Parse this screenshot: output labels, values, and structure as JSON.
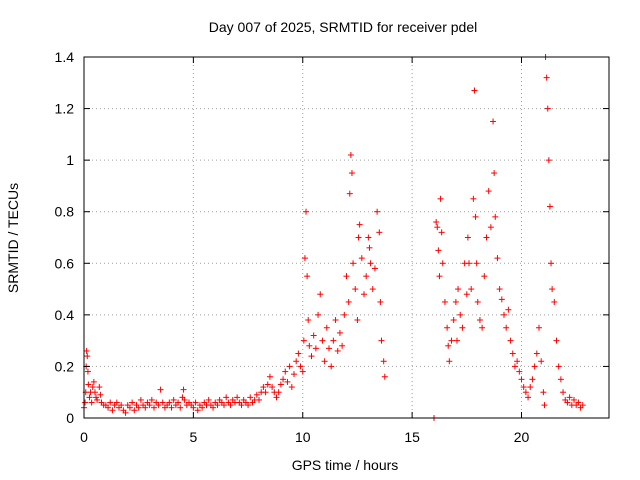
{
  "chart_data": {
    "type": "scatter",
    "title": "Day 007 of 2025, SRMTID for receiver pdel",
    "xlabel": "GPS time / hours",
    "ylabel": "SRMTID / TECUs",
    "xlim": [
      0,
      24
    ],
    "ylim": [
      0,
      1.4
    ],
    "x_ticks": [
      0,
      5,
      10,
      15,
      20
    ],
    "x_tick_labels": [
      "0",
      "5",
      "10",
      "15",
      "20"
    ],
    "y_ticks": [
      0,
      0.2,
      0.4,
      0.6,
      0.8,
      1.0,
      1.2,
      1.4
    ],
    "y_tick_labels": [
      "0",
      "0.2",
      "0.4",
      "0.6",
      "0.8",
      "1",
      "1.2",
      "1.4"
    ],
    "grid": true,
    "marker": "+",
    "color": "#ff0000",
    "series": [
      {
        "name": "SRMTID",
        "points": [
          [
            0.0,
            0.04
          ],
          [
            0.05,
            0.06
          ],
          [
            0.08,
            0.1
          ],
          [
            0.1,
            0.2
          ],
          [
            0.12,
            0.26
          ],
          [
            0.15,
            0.24
          ],
          [
            0.18,
            0.18
          ],
          [
            0.2,
            0.13
          ],
          [
            0.25,
            0.08
          ],
          [
            0.3,
            0.1
          ],
          [
            0.35,
            0.06
          ],
          [
            0.4,
            0.12
          ],
          [
            0.45,
            0.14
          ],
          [
            0.5,
            0.1
          ],
          [
            0.55,
            0.08
          ],
          [
            0.6,
            0.07
          ],
          [
            0.7,
            0.12
          ],
          [
            0.75,
            0.09
          ],
          [
            0.8,
            0.06
          ],
          [
            0.9,
            0.05
          ],
          [
            1.0,
            0.05
          ],
          [
            1.1,
            0.04
          ],
          [
            1.2,
            0.06
          ],
          [
            1.3,
            0.03
          ],
          [
            1.4,
            0.05
          ],
          [
            1.5,
            0.06
          ],
          [
            1.6,
            0.04
          ],
          [
            1.7,
            0.05
          ],
          [
            1.8,
            0.03
          ],
          [
            1.9,
            0.02
          ],
          [
            2.0,
            0.05
          ],
          [
            2.1,
            0.04
          ],
          [
            2.2,
            0.06
          ],
          [
            2.3,
            0.03
          ],
          [
            2.4,
            0.05
          ],
          [
            2.5,
            0.04
          ],
          [
            2.6,
            0.07
          ],
          [
            2.7,
            0.05
          ],
          [
            2.8,
            0.04
          ],
          [
            2.9,
            0.06
          ],
          [
            3.0,
            0.05
          ],
          [
            3.1,
            0.07
          ],
          [
            3.2,
            0.04
          ],
          [
            3.3,
            0.06
          ],
          [
            3.4,
            0.05
          ],
          [
            3.5,
            0.11
          ],
          [
            3.6,
            0.06
          ],
          [
            3.7,
            0.04
          ],
          [
            3.8,
            0.05
          ],
          [
            3.9,
            0.06
          ],
          [
            4.0,
            0.04
          ],
          [
            4.1,
            0.07
          ],
          [
            4.2,
            0.05
          ],
          [
            4.3,
            0.06
          ],
          [
            4.4,
            0.04
          ],
          [
            4.5,
            0.08
          ],
          [
            4.55,
            0.11
          ],
          [
            4.6,
            0.07
          ],
          [
            4.7,
            0.05
          ],
          [
            4.8,
            0.06
          ],
          [
            4.9,
            0.05
          ],
          [
            5.0,
            0.04
          ],
          [
            5.1,
            0.06
          ],
          [
            5.2,
            0.03
          ],
          [
            5.3,
            0.05
          ],
          [
            5.4,
            0.04
          ],
          [
            5.5,
            0.06
          ],
          [
            5.6,
            0.05
          ],
          [
            5.7,
            0.07
          ],
          [
            5.8,
            0.05
          ],
          [
            5.9,
            0.04
          ],
          [
            6.0,
            0.06
          ],
          [
            6.1,
            0.05
          ],
          [
            6.2,
            0.07
          ],
          [
            6.3,
            0.06
          ],
          [
            6.4,
            0.05
          ],
          [
            6.5,
            0.08
          ],
          [
            6.6,
            0.06
          ],
          [
            6.7,
            0.05
          ],
          [
            6.8,
            0.07
          ],
          [
            6.9,
            0.06
          ],
          [
            7.0,
            0.08
          ],
          [
            7.1,
            0.06
          ],
          [
            7.2,
            0.05
          ],
          [
            7.3,
            0.07
          ],
          [
            7.4,
            0.06
          ],
          [
            7.5,
            0.05
          ],
          [
            7.6,
            0.08
          ],
          [
            7.7,
            0.06
          ],
          [
            7.8,
            0.07
          ],
          [
            7.9,
            0.09
          ],
          [
            8.0,
            0.07
          ],
          [
            8.1,
            0.1
          ],
          [
            8.2,
            0.12
          ],
          [
            8.3,
            0.1
          ],
          [
            8.4,
            0.13
          ],
          [
            8.5,
            0.16
          ],
          [
            8.6,
            0.12
          ],
          [
            8.7,
            0.1
          ],
          [
            8.8,
            0.08
          ],
          [
            8.9,
            0.1
          ],
          [
            9.0,
            0.13
          ],
          [
            9.1,
            0.15
          ],
          [
            9.2,
            0.18
          ],
          [
            9.3,
            0.14
          ],
          [
            9.4,
            0.2
          ],
          [
            9.5,
            0.12
          ],
          [
            9.6,
            0.17
          ],
          [
            9.7,
            0.22
          ],
          [
            9.8,
            0.25
          ],
          [
            9.9,
            0.2
          ],
          [
            10.0,
            0.18
          ],
          [
            10.05,
            0.3
          ],
          [
            10.1,
            0.62
          ],
          [
            10.15,
            0.8
          ],
          [
            10.2,
            0.55
          ],
          [
            10.25,
            0.38
          ],
          [
            10.3,
            0.28
          ],
          [
            10.4,
            0.24
          ],
          [
            10.5,
            0.32
          ],
          [
            10.6,
            0.27
          ],
          [
            10.7,
            0.4
          ],
          [
            10.8,
            0.48
          ],
          [
            10.9,
            0.3
          ],
          [
            11.0,
            0.22
          ],
          [
            11.1,
            0.35
          ],
          [
            11.2,
            0.27
          ],
          [
            11.3,
            0.2
          ],
          [
            11.4,
            0.3
          ],
          [
            11.5,
            0.38
          ],
          [
            11.6,
            0.26
          ],
          [
            11.7,
            0.33
          ],
          [
            11.8,
            0.28
          ],
          [
            11.9,
            0.4
          ],
          [
            12.0,
            0.55
          ],
          [
            12.1,
            0.45
          ],
          [
            12.15,
            0.87
          ],
          [
            12.2,
            1.02
          ],
          [
            12.25,
            0.95
          ],
          [
            12.3,
            0.6
          ],
          [
            12.4,
            0.5
          ],
          [
            12.5,
            0.38
          ],
          [
            12.55,
            0.7
          ],
          [
            12.6,
            0.75
          ],
          [
            12.7,
            0.62
          ],
          [
            12.8,
            0.48
          ],
          [
            12.9,
            0.55
          ],
          [
            13.0,
            0.7
          ],
          [
            13.05,
            0.66
          ],
          [
            13.1,
            0.6
          ],
          [
            13.2,
            0.5
          ],
          [
            13.3,
            0.58
          ],
          [
            13.4,
            0.8
          ],
          [
            13.5,
            0.72
          ],
          [
            13.55,
            0.45
          ],
          [
            13.6,
            0.3
          ],
          [
            13.7,
            0.22
          ],
          [
            13.75,
            0.16
          ],
          [
            16.0,
            0.0
          ],
          [
            16.1,
            0.76
          ],
          [
            16.15,
            0.74
          ],
          [
            16.2,
            0.65
          ],
          [
            16.25,
            0.55
          ],
          [
            16.3,
            0.85
          ],
          [
            16.35,
            0.72
          ],
          [
            16.4,
            0.6
          ],
          [
            16.5,
            0.45
          ],
          [
            16.6,
            0.35
          ],
          [
            16.65,
            0.28
          ],
          [
            16.7,
            0.22
          ],
          [
            16.8,
            0.3
          ],
          [
            16.9,
            0.38
          ],
          [
            17.0,
            0.45
          ],
          [
            17.05,
            0.3
          ],
          [
            17.1,
            0.5
          ],
          [
            17.2,
            0.4
          ],
          [
            17.3,
            0.35
          ],
          [
            17.4,
            0.6
          ],
          [
            17.5,
            0.48
          ],
          [
            17.55,
            0.7
          ],
          [
            17.6,
            0.6
          ],
          [
            17.7,
            0.5
          ],
          [
            17.8,
            0.85
          ],
          [
            17.85,
            1.27
          ],
          [
            17.9,
            0.78
          ],
          [
            17.95,
            0.6
          ],
          [
            18.0,
            0.45
          ],
          [
            18.1,
            0.38
          ],
          [
            18.2,
            0.35
          ],
          [
            18.3,
            0.55
          ],
          [
            18.4,
            0.7
          ],
          [
            18.5,
            0.88
          ],
          [
            18.6,
            0.74
          ],
          [
            18.7,
            1.15
          ],
          [
            18.75,
            0.95
          ],
          [
            18.8,
            0.78
          ],
          [
            18.9,
            0.62
          ],
          [
            19.0,
            0.5
          ],
          [
            19.1,
            0.46
          ],
          [
            19.2,
            0.4
          ],
          [
            19.3,
            0.35
          ],
          [
            19.4,
            0.42
          ],
          [
            19.5,
            0.3
          ],
          [
            19.6,
            0.25
          ],
          [
            19.7,
            0.2
          ],
          [
            19.8,
            0.22
          ],
          [
            19.9,
            0.18
          ],
          [
            20.0,
            0.15
          ],
          [
            20.1,
            0.12
          ],
          [
            20.2,
            0.1
          ],
          [
            20.3,
            0.08
          ],
          [
            20.4,
            0.12
          ],
          [
            20.5,
            0.15
          ],
          [
            20.6,
            0.2
          ],
          [
            20.7,
            0.25
          ],
          [
            20.8,
            0.35
          ],
          [
            20.9,
            0.22
          ],
          [
            21.0,
            0.1
          ],
          [
            21.05,
            0.05
          ],
          [
            21.1,
            1.4
          ],
          [
            21.15,
            1.32
          ],
          [
            21.2,
            1.2
          ],
          [
            21.25,
            1.0
          ],
          [
            21.3,
            0.82
          ],
          [
            21.35,
            0.6
          ],
          [
            21.4,
            0.5
          ],
          [
            21.5,
            0.45
          ],
          [
            21.6,
            0.3
          ],
          [
            21.7,
            0.2
          ],
          [
            21.8,
            0.15
          ],
          [
            21.9,
            0.1
          ],
          [
            22.0,
            0.07
          ],
          [
            22.1,
            0.06
          ],
          [
            22.2,
            0.08
          ],
          [
            22.3,
            0.05
          ],
          [
            22.4,
            0.07
          ],
          [
            22.5,
            0.05
          ],
          [
            22.6,
            0.06
          ],
          [
            22.7,
            0.04
          ],
          [
            22.8,
            0.05
          ]
        ]
      }
    ]
  }
}
